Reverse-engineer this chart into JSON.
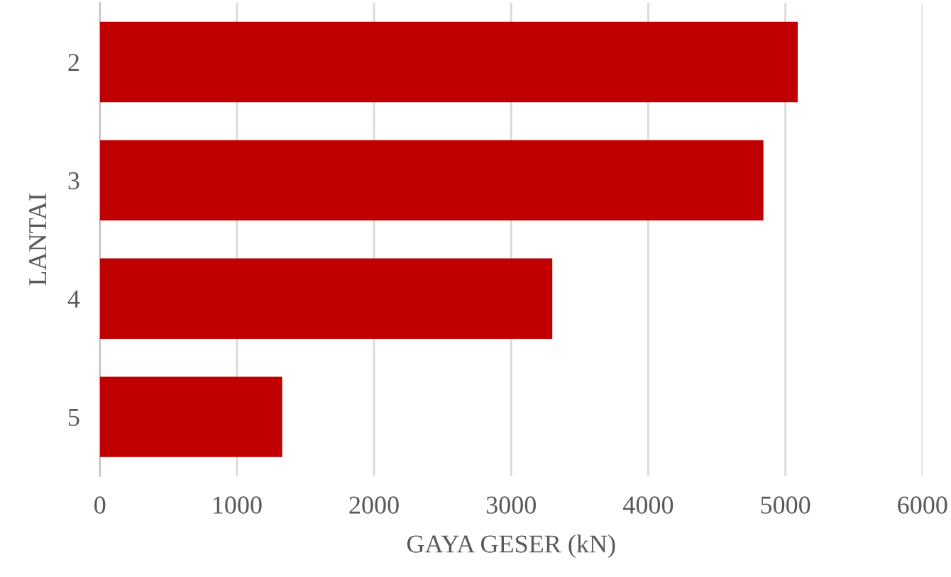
{
  "chart_data": {
    "type": "bar",
    "orientation": "horizontal",
    "categories": [
      "2",
      "3",
      "4",
      "5"
    ],
    "values": [
      5090,
      4840,
      3300,
      1330
    ],
    "color": "#c00000",
    "xlabel": "GAYA GESER (kN)",
    "ylabel": "LANTAI",
    "xlim": [
      0,
      6000
    ],
    "xticks": [
      0,
      1000,
      2000,
      3000,
      4000,
      5000,
      6000
    ],
    "grid": "x",
    "legend": false
  }
}
